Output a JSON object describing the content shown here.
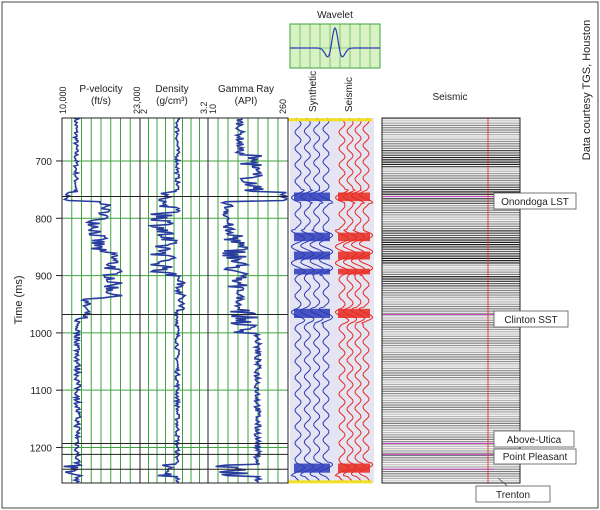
{
  "credit": "Data courtesy TGS, Houston",
  "y_axis": {
    "label": "Time (ms)",
    "range": [
      625,
      1262
    ],
    "ticks": [
      700,
      800,
      900,
      1000,
      1100,
      1200
    ]
  },
  "wavelet": {
    "title": "Wavelet"
  },
  "tracks": {
    "pvel": {
      "title": "P-velocity",
      "unit": "(ft/s)",
      "min_label": "10,000",
      "max_label": "23,000"
    },
    "dens": {
      "title": "Density",
      "unit": "(g/cm³)",
      "min_label": "2",
      "max_label": "3.2"
    },
    "gamma": {
      "title": "Gamma Ray",
      "unit": "(API)",
      "min_label": "10",
      "max_label": "260"
    },
    "synthetic": {
      "title": "Synthetic"
    },
    "seismic_trace": {
      "title": "Seismic"
    },
    "seismic_section": {
      "title": "Seismic"
    }
  },
  "horizons": [
    {
      "name": "Onondoga LST",
      "time_ms": 762
    },
    {
      "name": "Clinton SST",
      "time_ms": 968
    },
    {
      "name": "Above-Utica",
      "time_ms": 1193
    },
    {
      "name": "Point Pleasant",
      "time_ms": 1212
    },
    {
      "name": "Trenton",
      "time_ms": 1238
    }
  ],
  "colors": {
    "log_curve": "#283c9e",
    "grid_green": "#3fa33f",
    "synthetic_blue": "#2a3ab8",
    "seismic_red": "#e8281e",
    "marker_yellow": "#f0e020",
    "frame": "#333333"
  }
}
